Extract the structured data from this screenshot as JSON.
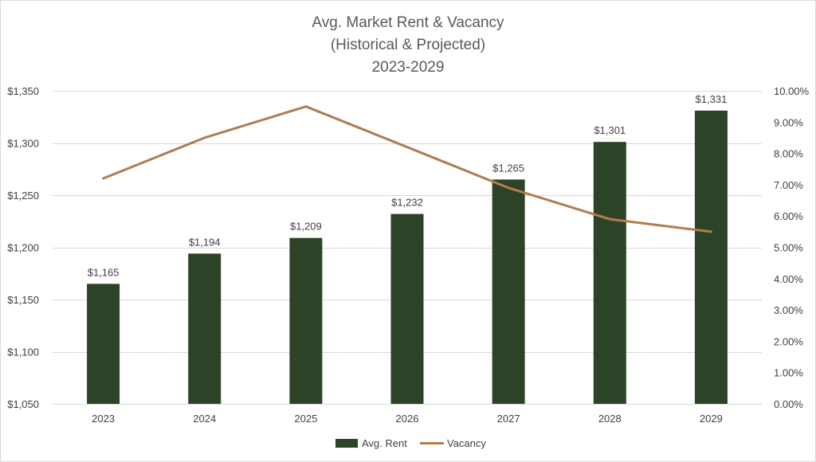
{
  "chart_data": {
    "type": "bar",
    "title_lines": [
      "Avg. Market Rent & Vacancy",
      "(Historical & Projected)",
      "2023-2029"
    ],
    "categories": [
      "2023",
      "2024",
      "2025",
      "2026",
      "2027",
      "2028",
      "2029"
    ],
    "series": [
      {
        "name": "Avg. Rent",
        "type": "bar",
        "axis": "left",
        "color": "#2d4327",
        "values": [
          1165,
          1194,
          1209,
          1232,
          1265,
          1301,
          1331
        ],
        "data_labels": [
          "$1,165",
          "$1,194",
          "$1,209",
          "$1,232",
          "$1,265",
          "$1,301",
          "$1,331"
        ]
      },
      {
        "name": "Vacancy",
        "type": "line",
        "axis": "right",
        "color": "#b07d4f",
        "values": [
          7.2,
          8.5,
          9.5,
          8.2,
          6.9,
          5.9,
          5.5
        ]
      }
    ],
    "y_left": {
      "range": [
        1050,
        1350
      ],
      "ticks": [
        1050,
        1100,
        1150,
        1200,
        1250,
        1300,
        1350
      ],
      "tick_labels": [
        "$1,050",
        "$1,100",
        "$1,150",
        "$1,200",
        "$1,250",
        "$1,300",
        "$1,350"
      ]
    },
    "y_right": {
      "range": [
        0,
        10
      ],
      "ticks": [
        0,
        1,
        2,
        3,
        4,
        5,
        6,
        7,
        8,
        9,
        10
      ],
      "tick_labels": [
        "0.00%",
        "1.00%",
        "2.00%",
        "3.00%",
        "4.00%",
        "5.00%",
        "6.00%",
        "7.00%",
        "8.00%",
        "9.00%",
        "10.00%"
      ]
    },
    "grid": "horizontal",
    "legend": "bottom-center",
    "gridline_color": "#d9d9d9"
  }
}
